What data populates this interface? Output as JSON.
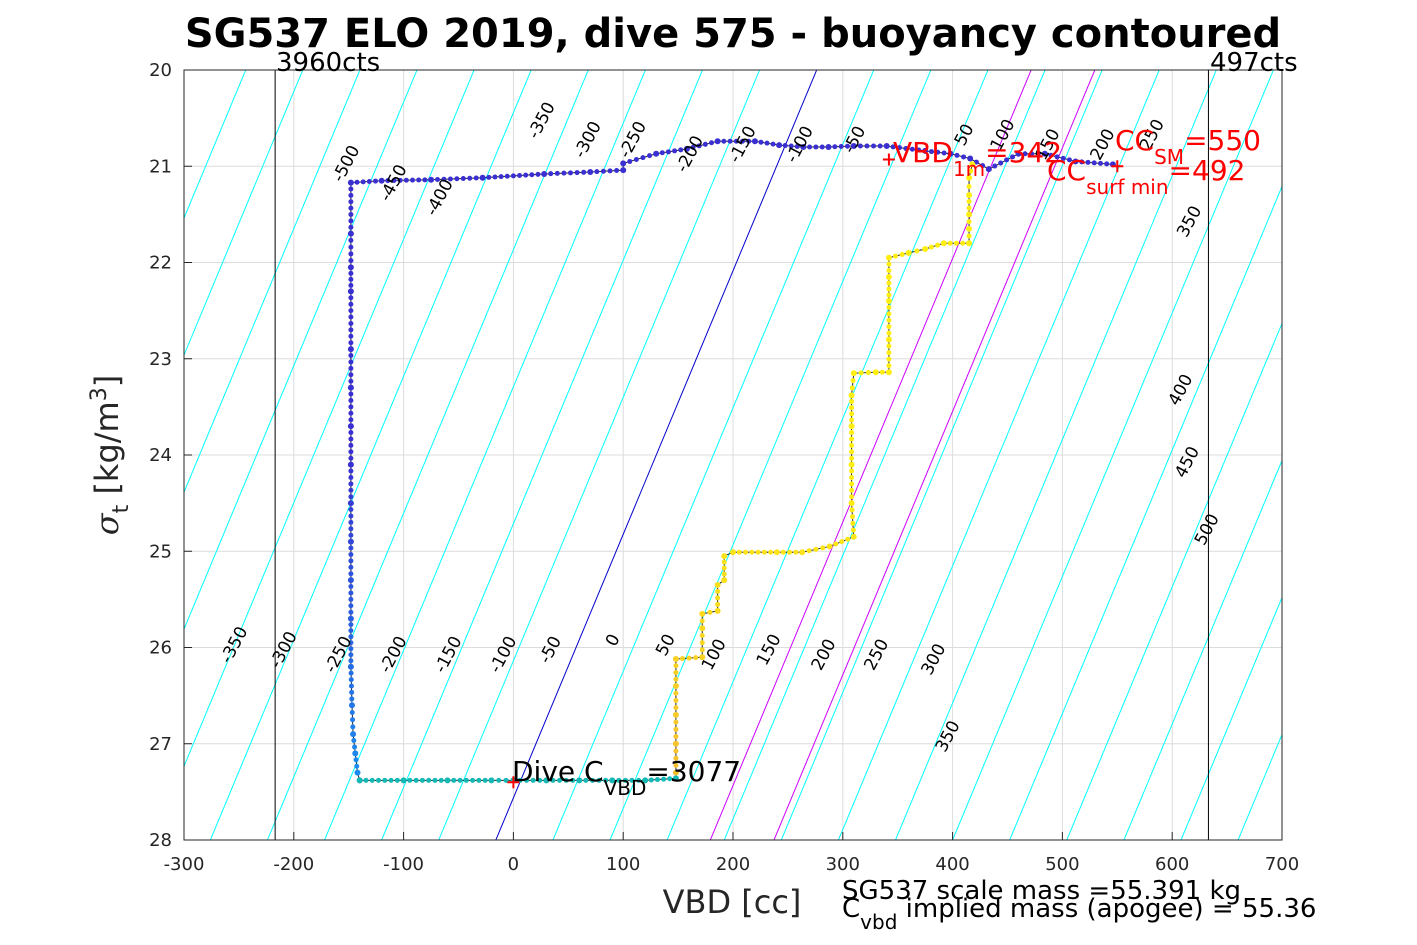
{
  "chart_data": {
    "type": "scatter",
    "title": "SG537 ELO 2019, dive 575 - buoyancy contoured",
    "xlabel": "VBD [cc]",
    "ylabel_symbol": "σ",
    "ylabel_sub": "t",
    "ylabel_unit": " [kg/m",
    "ylabel_sup": "3",
    "ylabel_close": "]",
    "xlim": [
      -300,
      700
    ],
    "ylim": [
      20,
      28
    ],
    "y_reversed": true,
    "grid": true,
    "x_ticks": [
      "-300",
      "-200",
      "-100",
      "0",
      "100",
      "200",
      "300",
      "400",
      "500",
      "600",
      "700"
    ],
    "y_ticks": [
      "20",
      "21",
      "22",
      "23",
      "24",
      "25",
      "26",
      "27",
      "28"
    ],
    "counts": {
      "left": {
        "label": "3960cts",
        "x": -217
      },
      "right": {
        "label": "497cts",
        "x": 633
      }
    },
    "contours": {
      "levels": [
        -500,
        -450,
        -400,
        -350,
        -300,
        -250,
        -200,
        -150,
        -100,
        -50,
        0,
        50,
        100,
        150,
        200,
        250,
        300,
        350,
        400,
        450,
        500
      ],
      "zero_level": 0,
      "label_strings": [
        "-500",
        "-450",
        "-400",
        "-350",
        "-300",
        "-250",
        "-200",
        "-150",
        "-100",
        "-50",
        "0",
        "50",
        "100",
        "150",
        "200",
        "250",
        "300",
        "350",
        "400",
        "450",
        "500"
      ],
      "labels": [
        {
          "text": "-500",
          "x": -148,
          "y": 21.0
        },
        {
          "text": "-450",
          "x": -105,
          "y": 21.2
        },
        {
          "text": "-400",
          "x": -63,
          "y": 21.35
        },
        {
          "text": "-350",
          "x": 30,
          "y": 20.55
        },
        {
          "text": "-300",
          "x": 72,
          "y": 20.75
        },
        {
          "text": "-250",
          "x": 113,
          "y": 20.75
        },
        {
          "text": "-200",
          "x": 165,
          "y": 20.9
        },
        {
          "text": "-150",
          "x": 213,
          "y": 20.8
        },
        {
          "text": "-100",
          "x": 265,
          "y": 20.8
        },
        {
          "text": "-50",
          "x": 315,
          "y": 20.75
        },
        {
          "text": "50",
          "x": 415,
          "y": 20.7
        },
        {
          "text": "100",
          "x": 450,
          "y": 20.7
        },
        {
          "text": "150",
          "x": 491,
          "y": 20.8
        },
        {
          "text": "200",
          "x": 541,
          "y": 20.8
        },
        {
          "text": "250",
          "x": 586,
          "y": 20.7
        },
        {
          "text": "350",
          "x": 620,
          "y": 21.6
        },
        {
          "text": "-350",
          "x": -250,
          "y": 26.0
        },
        {
          "text": "-300",
          "x": -205,
          "y": 26.05
        },
        {
          "text": "-250",
          "x": -155,
          "y": 26.1
        },
        {
          "text": "-200",
          "x": -105,
          "y": 26.1
        },
        {
          "text": "-150",
          "x": -55,
          "y": 26.1
        },
        {
          "text": "-100",
          "x": -5,
          "y": 26.1
        },
        {
          "text": "-50",
          "x": 38,
          "y": 26.05
        },
        {
          "text": "0",
          "x": 95,
          "y": 25.95
        },
        {
          "text": "50",
          "x": 143,
          "y": 26.0
        },
        {
          "text": "100",
          "x": 187,
          "y": 26.1
        },
        {
          "text": "150",
          "x": 237,
          "y": 26.05
        },
        {
          "text": "200",
          "x": 287,
          "y": 26.1
        },
        {
          "text": "250",
          "x": 335,
          "y": 26.1
        },
        {
          "text": "300",
          "x": 387,
          "y": 26.15
        },
        {
          "text": "350",
          "x": 400,
          "y": 26.95
        },
        {
          "text": "400",
          "x": 612,
          "y": 23.35
        },
        {
          "text": "450",
          "x": 618,
          "y": 24.1
        },
        {
          "text": "500",
          "x": 636,
          "y": 24.8
        }
      ]
    },
    "iso_lines": [
      {
        "name": "sm_line",
        "color": "#cc00ff",
        "x_at_21": 493
      },
      {
        "name": "surf_min_line",
        "color": "#cc00ff",
        "x_at_21": 435
      }
    ],
    "series": [
      {
        "role": "descent",
        "points": [
          [
            546,
            20.98
          ],
          [
            512,
            20.95
          ],
          [
            484,
            20.87
          ],
          [
            460,
            20.87
          ],
          [
            433,
            21.03
          ],
          [
            416,
            20.92
          ],
          [
            398,
            20.87
          ],
          [
            375,
            20.84
          ],
          [
            340,
            20.79
          ],
          [
            310,
            20.79
          ],
          [
            287,
            20.8
          ],
          [
            264,
            20.8
          ],
          [
            242,
            20.78
          ],
          [
            220,
            20.74
          ],
          [
            186,
            20.74
          ],
          [
            158,
            20.82
          ],
          [
            130,
            20.87
          ],
          [
            100,
            20.97
          ],
          [
            100,
            21.04
          ],
          [
            70,
            21.06
          ],
          [
            28,
            21.08
          ],
          [
            -28,
            21.12
          ],
          [
            -75,
            21.14
          ],
          [
            -120,
            21.15
          ],
          [
            -148,
            21.17
          ],
          [
            -148,
            21.7
          ],
          [
            -148,
            22.05
          ],
          [
            -148,
            22.3
          ],
          [
            -148,
            22.9
          ],
          [
            -148,
            23.3
          ],
          [
            -148,
            23.7
          ],
          [
            -148,
            24.1
          ],
          [
            -148,
            24.5
          ],
          [
            -148,
            24.9
          ],
          [
            -148,
            25.3
          ],
          [
            -148,
            25.7
          ],
          [
            -148,
            26.2
          ],
          [
            -147,
            26.6
          ],
          [
            -146,
            26.9
          ],
          [
            -144,
            27.1
          ],
          [
            -142,
            27.3
          ],
          [
            -140,
            27.38
          ]
        ]
      },
      {
        "role": "bottom",
        "points": [
          [
            -140,
            27.38
          ],
          [
            -100,
            27.38
          ],
          [
            -60,
            27.38
          ],
          [
            -20,
            27.38
          ],
          [
            0,
            27.38
          ],
          [
            30,
            27.38
          ],
          [
            60,
            27.38
          ],
          [
            90,
            27.38
          ],
          [
            120,
            27.38
          ],
          [
            148,
            27.36
          ]
        ]
      },
      {
        "role": "ascent",
        "points": [
          [
            148,
            27.3
          ],
          [
            148,
            27.0
          ],
          [
            148,
            26.7
          ],
          [
            148,
            26.4
          ],
          [
            148,
            26.12
          ],
          [
            172,
            26.1
          ],
          [
            172,
            25.8
          ],
          [
            172,
            25.65
          ],
          [
            186,
            25.62
          ],
          [
            186,
            25.35
          ],
          [
            192,
            25.3
          ],
          [
            192,
            25.05
          ],
          [
            200,
            25.01
          ],
          [
            240,
            25.01
          ],
          [
            263,
            25.01
          ],
          [
            288,
            24.95
          ],
          [
            310,
            24.85
          ],
          [
            308,
            24.5
          ],
          [
            308,
            24.1
          ],
          [
            308,
            23.7
          ],
          [
            308,
            23.38
          ],
          [
            310,
            23.15
          ],
          [
            330,
            23.14
          ],
          [
            342,
            23.14
          ],
          [
            342,
            22.8
          ],
          [
            342,
            22.4
          ],
          [
            342,
            22.15
          ],
          [
            342,
            21.95
          ],
          [
            360,
            21.9
          ],
          [
            375,
            21.86
          ],
          [
            392,
            21.8
          ],
          [
            415,
            21.8
          ],
          [
            415,
            21.65
          ],
          [
            415,
            21.5
          ],
          [
            415,
            21.3
          ],
          [
            415,
            21.12
          ],
          [
            418,
            20.98
          ]
        ]
      }
    ],
    "markers": [
      {
        "name": "vbd_1m",
        "x": 342,
        "y": 20.93,
        "color": "#ff0000"
      },
      {
        "name": "cc_sm",
        "x": 550,
        "y": 21.0,
        "color": "#ff0000"
      },
      {
        "name": "dive_c_vbd",
        "x": 0,
        "y": 27.4,
        "color": "#ff0000"
      }
    ],
    "annotations": {
      "vbd_1m_main": "VBD",
      "vbd_1m_sub": "1m",
      "vbd_1m_value": "=342",
      "cc_sm_main": "CC",
      "cc_sm_sub": "SM",
      "cc_sm_value": "=550",
      "cc_surf_main": "CC",
      "cc_surf_sub": "surf min",
      "cc_surf_value": "=492",
      "dive_main": "Dive C",
      "dive_sub": "VBD",
      "dive_value": "=3077",
      "scale_mass": "SG537 scale mass =55.391 kg",
      "implied_main": "C",
      "implied_sub": "vbd",
      "implied_rest": " implied mass (apogee) = 55.36"
    },
    "colors": {
      "contour": "#00ffff",
      "zero_contour": "#0000cc",
      "iso_lines": "#cc00ff",
      "grid": "#dcdcdc",
      "track": "#000000",
      "descent_start": "#3a2fd0",
      "descent_end": "#1a8ff0",
      "bottom": "#14b8b4",
      "ascent_low": "#f5c030",
      "ascent_high": "#ffee10"
    }
  }
}
